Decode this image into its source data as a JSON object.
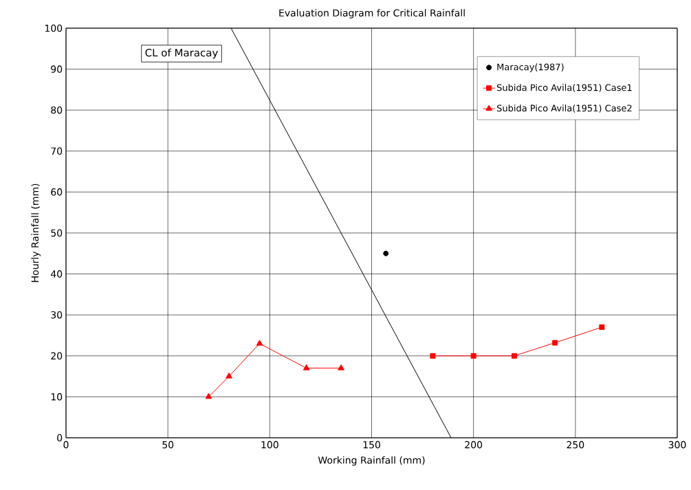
{
  "chart_data": {
    "type": "line",
    "title": "Evaluation Diagram for Critical Rainfall",
    "xlabel": "Working Rainfall (mm)",
    "ylabel": "Hourly Rainfall (mm)",
    "xlim": [
      0,
      300
    ],
    "ylim": [
      0,
      100
    ],
    "xticks": [
      0,
      50,
      100,
      150,
      200,
      250,
      300
    ],
    "yticks": [
      0,
      10,
      20,
      30,
      40,
      50,
      60,
      70,
      80,
      90,
      100
    ],
    "grid": true,
    "legend": "top right",
    "annotations": [
      "CL of Maracay"
    ],
    "series": [
      {
        "name": "Maracay(1987)",
        "type": "scatter",
        "marker": "circle",
        "color": "#000000",
        "x": [
          157
        ],
        "values": [
          45
        ]
      },
      {
        "name": "Subida Pico Avila(1951) Case1",
        "marker": "square",
        "color": "#ff0000",
        "x": [
          180,
          200,
          220,
          240,
          263
        ],
        "values": [
          20,
          20,
          20,
          23.2,
          27
        ]
      },
      {
        "name": "Subida Pico Avila(1951) Case2",
        "marker": "triangle",
        "color": "#ff0000",
        "x": [
          70,
          80,
          95,
          118,
          135
        ],
        "values": [
          10,
          15,
          23,
          17,
          17
        ]
      },
      {
        "marker": "none",
        "color": "#000000",
        "x": [
          81,
          189
        ],
        "values": [
          100,
          0
        ]
      }
    ]
  }
}
